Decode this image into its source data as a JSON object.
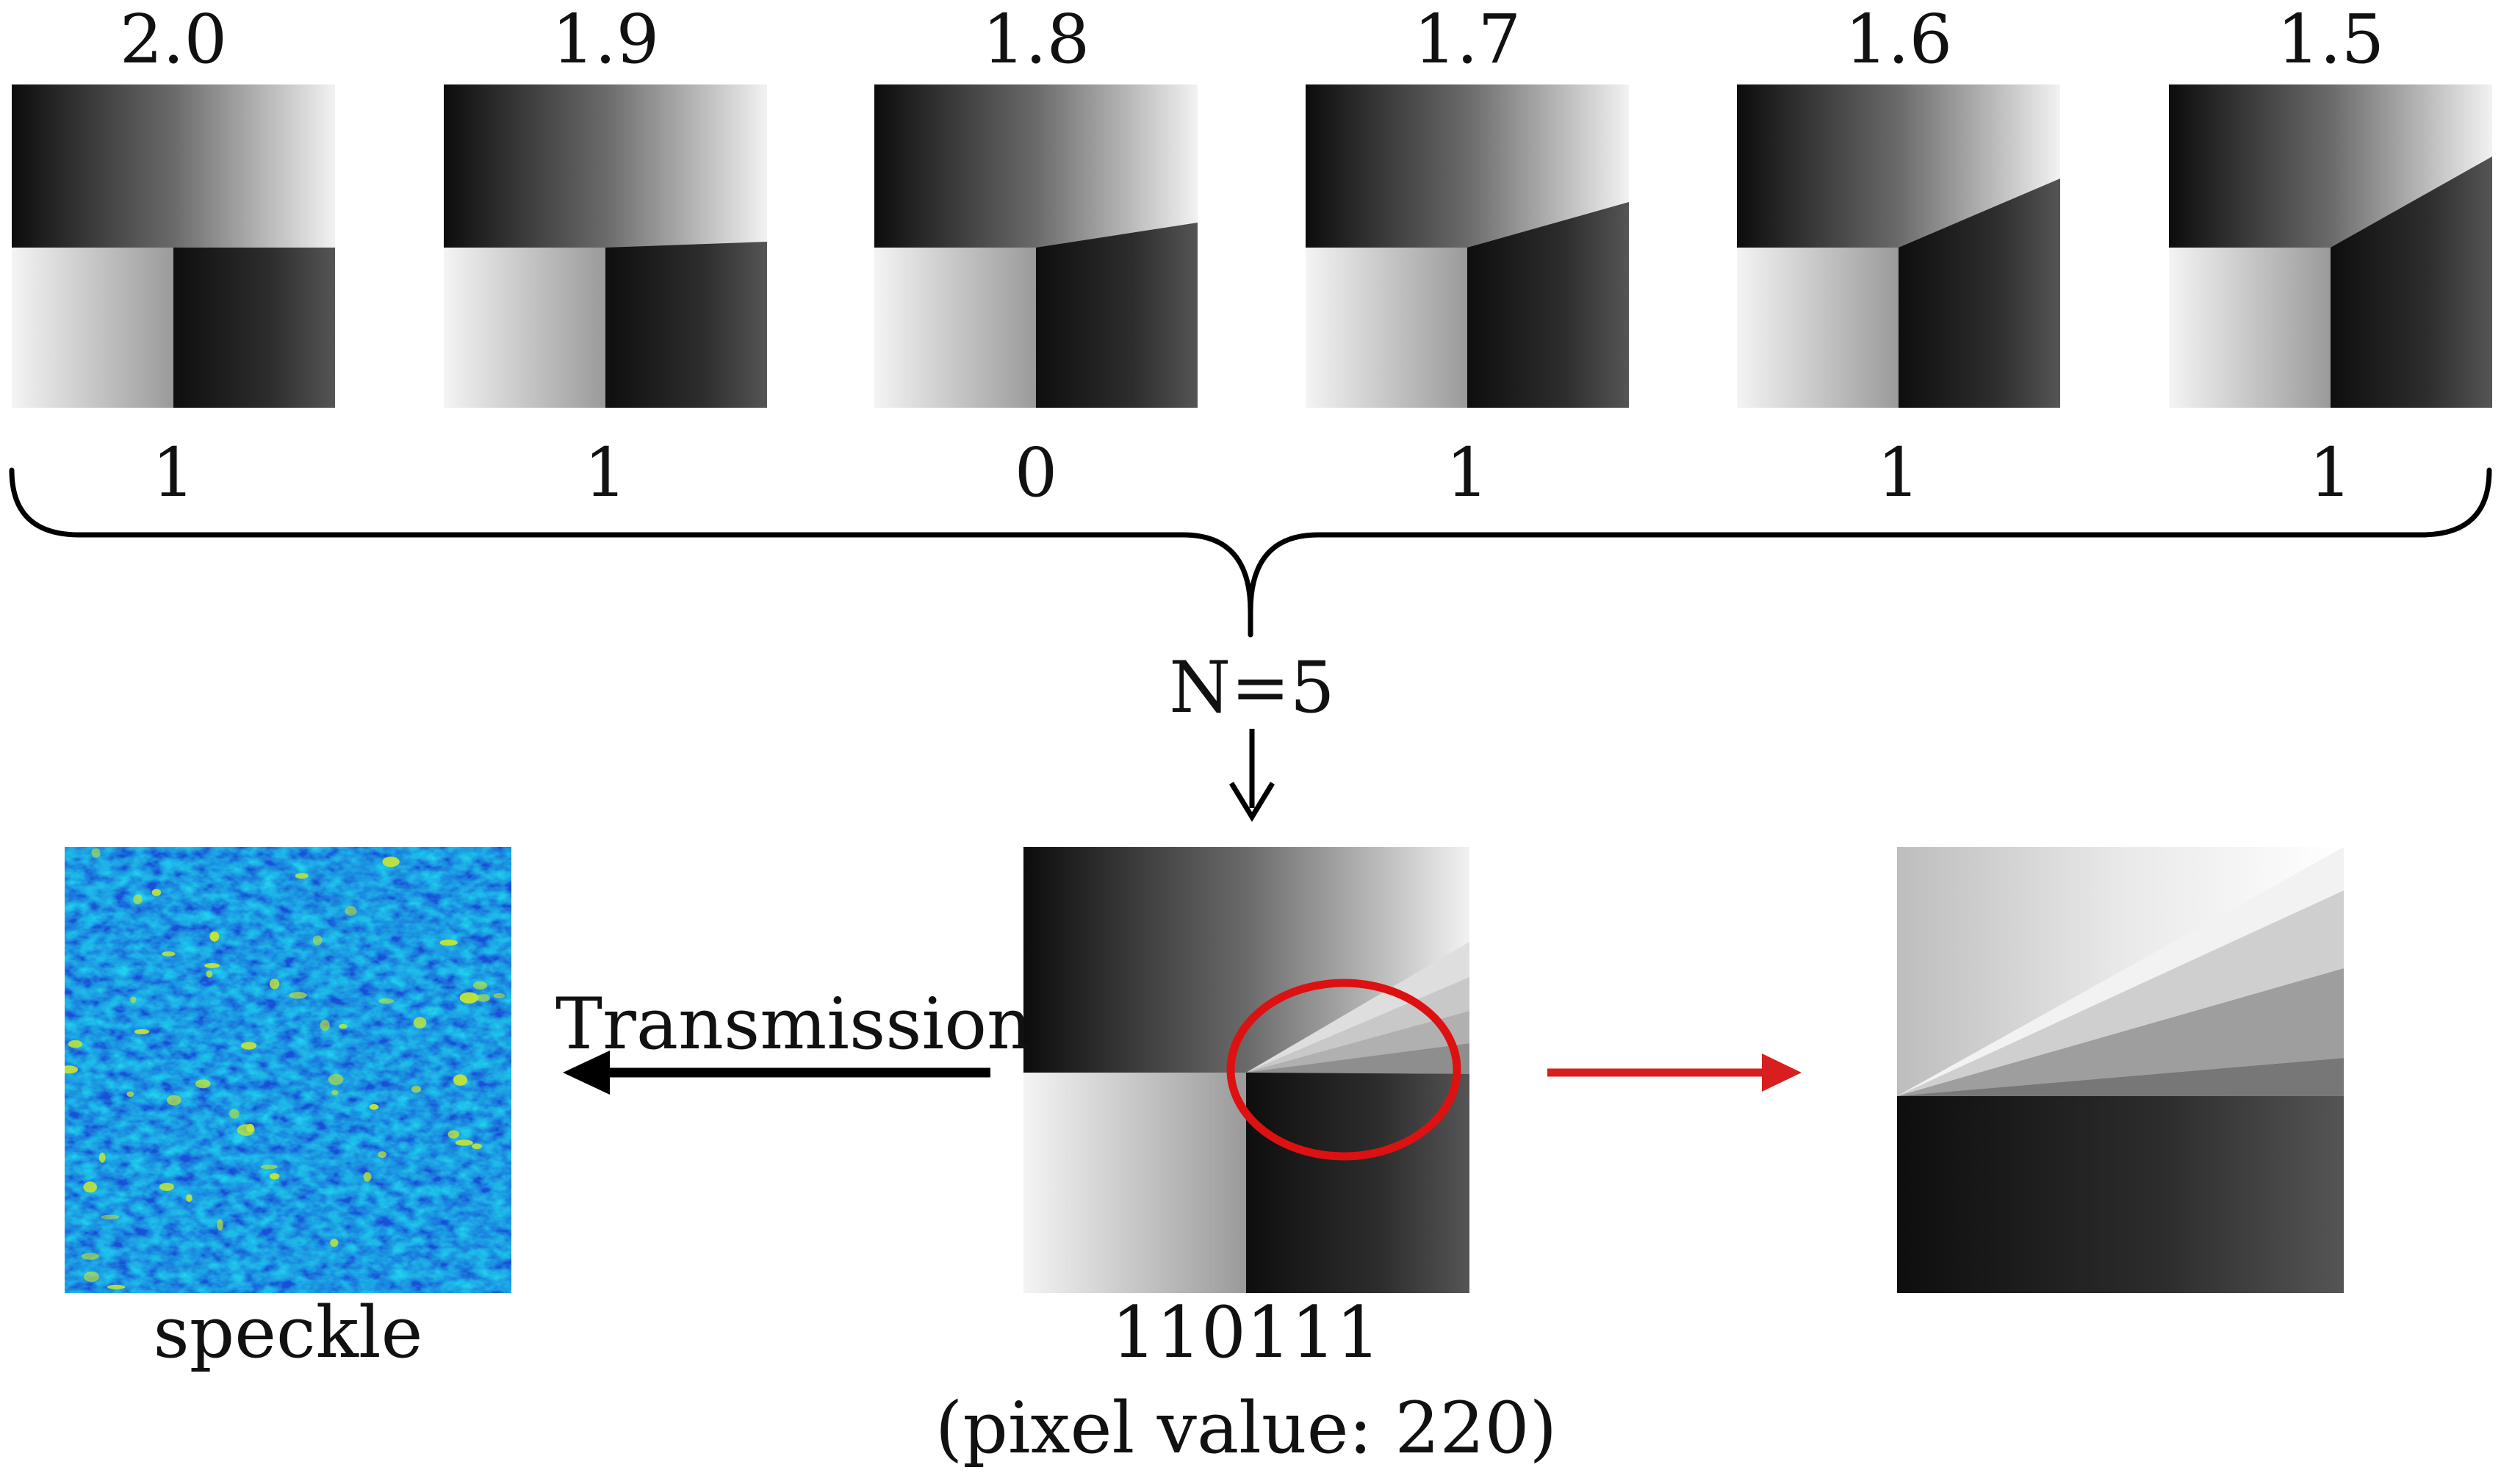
{
  "phase_masks": [
    {
      "topological_charge": "2.0",
      "bit": "1"
    },
    {
      "topological_charge": "1.9",
      "bit": "1"
    },
    {
      "topological_charge": "1.8",
      "bit": "0"
    },
    {
      "topological_charge": "1.7",
      "bit": "1"
    },
    {
      "topological_charge": "1.6",
      "bit": "1"
    },
    {
      "topological_charge": "1.5",
      "bit": "1"
    }
  ],
  "superposition_label": "N=5",
  "encoded": {
    "binary_code": "110111",
    "pixel_value_text": "(pixel value: 220)"
  },
  "transmission_label": "Transmission",
  "speckle_label": "speckle",
  "colors": {
    "text": "#111111",
    "highlight_ellipse": "#dd1111",
    "zoom_arrow": "#d81e1e",
    "arrow": "#000000",
    "speckle_base": "#1f4fd8",
    "speckle_mid": "#1ec6ea",
    "speckle_high": "#c8e830"
  }
}
